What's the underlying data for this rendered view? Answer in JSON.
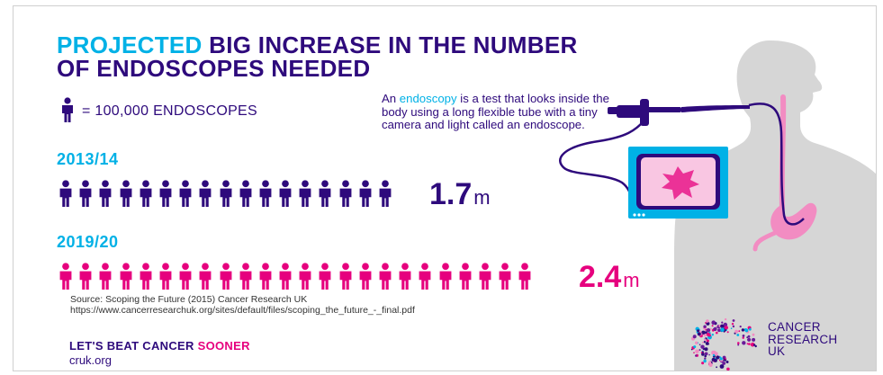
{
  "title": {
    "highlight": "PROJECTED",
    "rest": "BIG INCREASE IN THE NUMBER",
    "line2": "OF ENDOSCOPES NEEDED"
  },
  "key": {
    "label": "= 100,000 ENDOSCOPES",
    "icon": "person-icon"
  },
  "rows": [
    {
      "year": "2013/14",
      "icons": 17,
      "value": "1.7",
      "unit": "m",
      "color": "#2e0a7c"
    },
    {
      "year": "2019/20",
      "icons": 24,
      "value": "2.4",
      "unit": "m",
      "color": "#e6007e"
    }
  ],
  "description": {
    "before": "An ",
    "term": "endoscopy",
    "after": " is a test that looks inside the body using a long flexible tube with a tiny camera and light called an endoscope."
  },
  "source": {
    "line1": "Source: Scoping the Future (2015) Cancer Research UK",
    "line2": "https://www.cancerresearchuk.org/sites/default/files/scoping_the_future_-_final.pdf"
  },
  "footer": {
    "slogan": "LET'S BEAT CANCER",
    "slogan_accent": "SOONER",
    "site": "cruk.org"
  },
  "logo": {
    "line1": "CANCER",
    "line2": "RESEARCH",
    "line3": "UK"
  },
  "colors": {
    "navy": "#2e0a7c",
    "cyan": "#00b1e6",
    "pink": "#e6007e",
    "silhouette": "#d6d6d6"
  }
}
